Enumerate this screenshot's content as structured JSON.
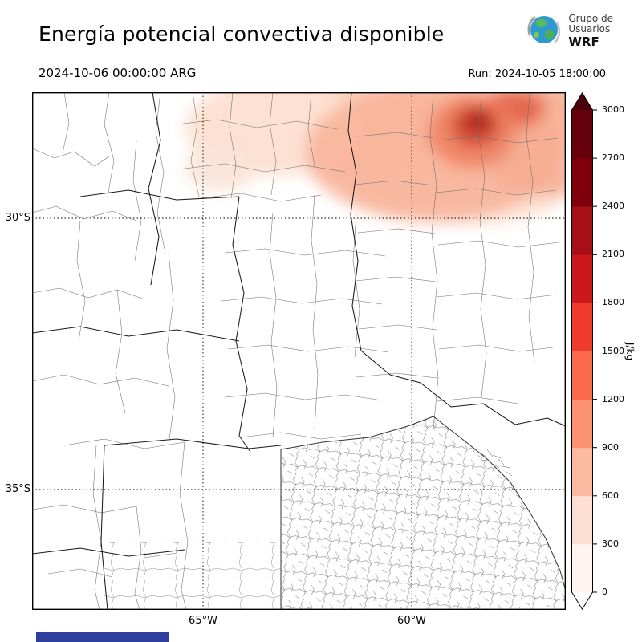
{
  "header": {
    "title": "Energía potencial convectiva disponible",
    "logo": {
      "line1": "Grupo de",
      "line2": "Usuarios",
      "line3": "WRF"
    }
  },
  "subheader": {
    "valid_time": "2024-10-06 00:00:00 ARG",
    "run_time": "Run: 2024-10-05 18:00:00"
  },
  "map": {
    "lat_labels": [
      {
        "label": "30°S"
      },
      {
        "label": "35°S"
      }
    ],
    "lon_labels": [
      {
        "label": "65°W"
      },
      {
        "label": "60°W"
      }
    ]
  },
  "colorbar": {
    "unit": "J/kg",
    "ticks": [
      "0",
      "300",
      "600",
      "900",
      "1200",
      "1500",
      "1800",
      "2100",
      "2400",
      "2700",
      "3000"
    ],
    "colors": [
      "#fff5f0",
      "#fee0d2",
      "#fcbba1",
      "#fc9272",
      "#fb6a4a",
      "#ef3b2c",
      "#cb181d",
      "#a50f15",
      "#7f000b",
      "#67000d"
    ],
    "over_color": "#4a000a",
    "under_color": "#ffffff"
  },
  "footer": {
    "bar_color": "#2f3f9e"
  },
  "chart_data": {
    "type": "heatmap",
    "title": "Energía potencial convectiva disponible",
    "valid_time": "2024-10-06 00:00:00 ARG",
    "run_time": "2024-10-05 18:00:00",
    "units": "J/kg",
    "colorbar_ticks": [
      0,
      300,
      600,
      900,
      1200,
      1500,
      1800,
      2100,
      2400,
      2700,
      3000
    ],
    "lat_gridlines": [
      "30°S",
      "35°S"
    ],
    "lon_gridlines": [
      "65°W",
      "60°W"
    ],
    "notes": "CAPE shading only north of ~30°S; pale 300-900 J/kg field across the top of the domain with a maximum core of roughly 1800-2100 J/kg near the top centre-right edge; rest of the map 0 J/kg."
  }
}
